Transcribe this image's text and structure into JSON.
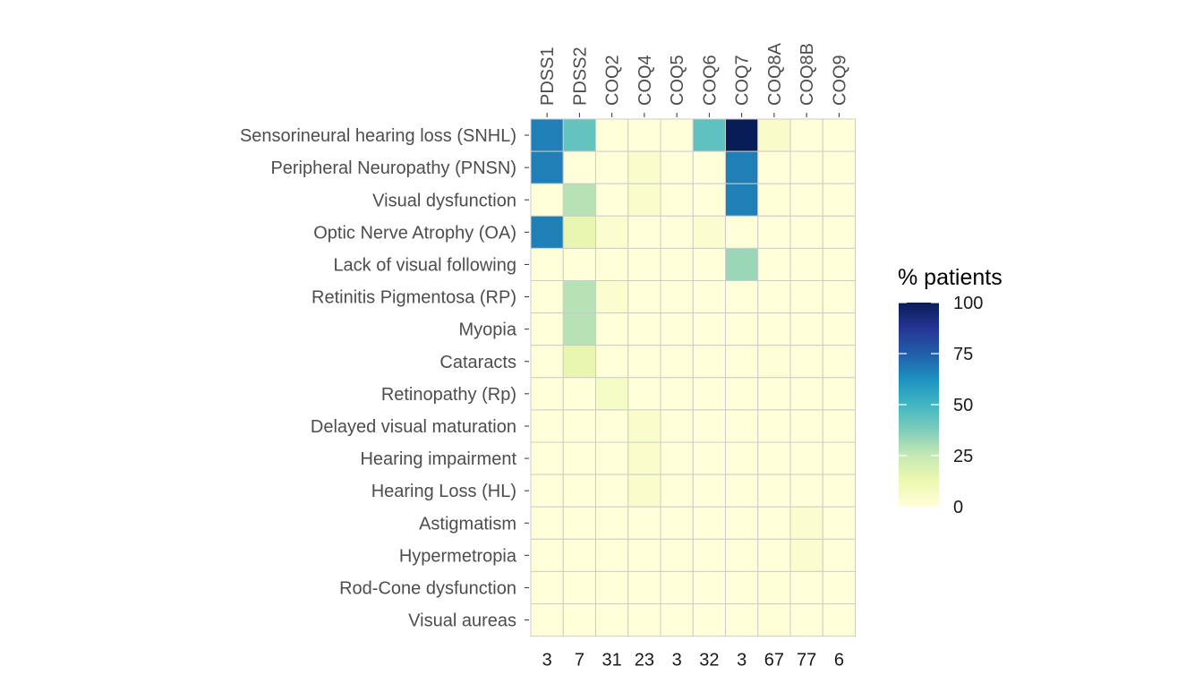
{
  "chart_data": {
    "type": "heatmap",
    "rows": [
      "Sensorineural hearing loss (SNHL)",
      "Peripheral Neuropathy (PNSN)",
      "Visual dysfunction",
      "Optic Nerve Atrophy (OA)",
      "Lack of visual following",
      "Retinitis Pigmentosa (RP)",
      "Myopia",
      "Cataracts",
      "Retinopathy (Rp)",
      "Delayed visual maturation",
      "Hearing impairment",
      "Hearing Loss (HL)",
      "Astigmatism",
      "Hypermetropia",
      "Rod-Cone dysfunction",
      "Visual aureas"
    ],
    "columns": [
      "PDSS1",
      "PDSS2",
      "COQ2",
      "COQ4",
      "COQ5",
      "COQ6",
      "COQ7",
      "COQ8A",
      "COQ8B",
      "COQ9"
    ],
    "column_counts": [
      "3",
      "7",
      "31",
      "23",
      "3",
      "32",
      "3",
      "67",
      "77",
      "6"
    ],
    "values": [
      [
        67,
        43,
        0,
        0,
        0,
        44,
        100,
        5,
        0,
        0
      ],
      [
        67,
        0,
        0,
        4,
        0,
        0,
        67,
        0,
        0,
        0
      ],
      [
        0,
        28,
        0,
        4,
        0,
        0,
        67,
        1,
        0,
        0
      ],
      [
        67,
        14,
        3,
        0,
        0,
        3,
        0,
        0,
        0,
        0
      ],
      [
        0,
        0,
        0,
        0,
        0,
        0,
        33,
        0,
        0,
        0
      ],
      [
        0,
        28,
        3,
        0,
        0,
        0,
        0,
        0,
        0,
        0
      ],
      [
        0,
        28,
        0,
        0,
        0,
        0,
        0,
        0,
        0,
        0
      ],
      [
        0,
        14,
        0,
        0,
        0,
        0,
        0,
        1,
        0,
        0
      ],
      [
        0,
        0,
        6,
        0,
        0,
        0,
        0,
        0,
        0,
        0
      ],
      [
        0,
        0,
        0,
        4,
        0,
        0,
        0,
        0,
        0,
        0
      ],
      [
        0,
        0,
        0,
        4,
        0,
        0,
        0,
        0,
        0,
        0
      ],
      [
        0,
        0,
        0,
        4,
        0,
        0,
        0,
        0,
        0,
        0
      ],
      [
        0,
        0,
        0,
        0,
        0,
        0,
        0,
        0,
        3,
        0
      ],
      [
        0,
        0,
        0,
        0,
        0,
        0,
        0,
        0,
        3,
        0
      ],
      [
        0,
        0,
        0,
        0,
        0,
        0,
        0,
        1,
        0,
        0
      ],
      [
        0,
        0,
        0,
        0,
        0,
        0,
        0,
        1,
        0,
        0
      ]
    ],
    "legend": {
      "title": "% patients",
      "ticks": [
        "0",
        "25",
        "50",
        "75",
        "100"
      ],
      "placement": "right"
    },
    "value_range": [
      0,
      100
    ],
    "color_scale": [
      "#ffffd9",
      "#edf8b1",
      "#c7e9b4",
      "#7fcdbb",
      "#41b6c4",
      "#1d91c0",
      "#225ea8",
      "#253494",
      "#081d58"
    ],
    "cell_border_color": "#cccccc",
    "grid": false
  }
}
